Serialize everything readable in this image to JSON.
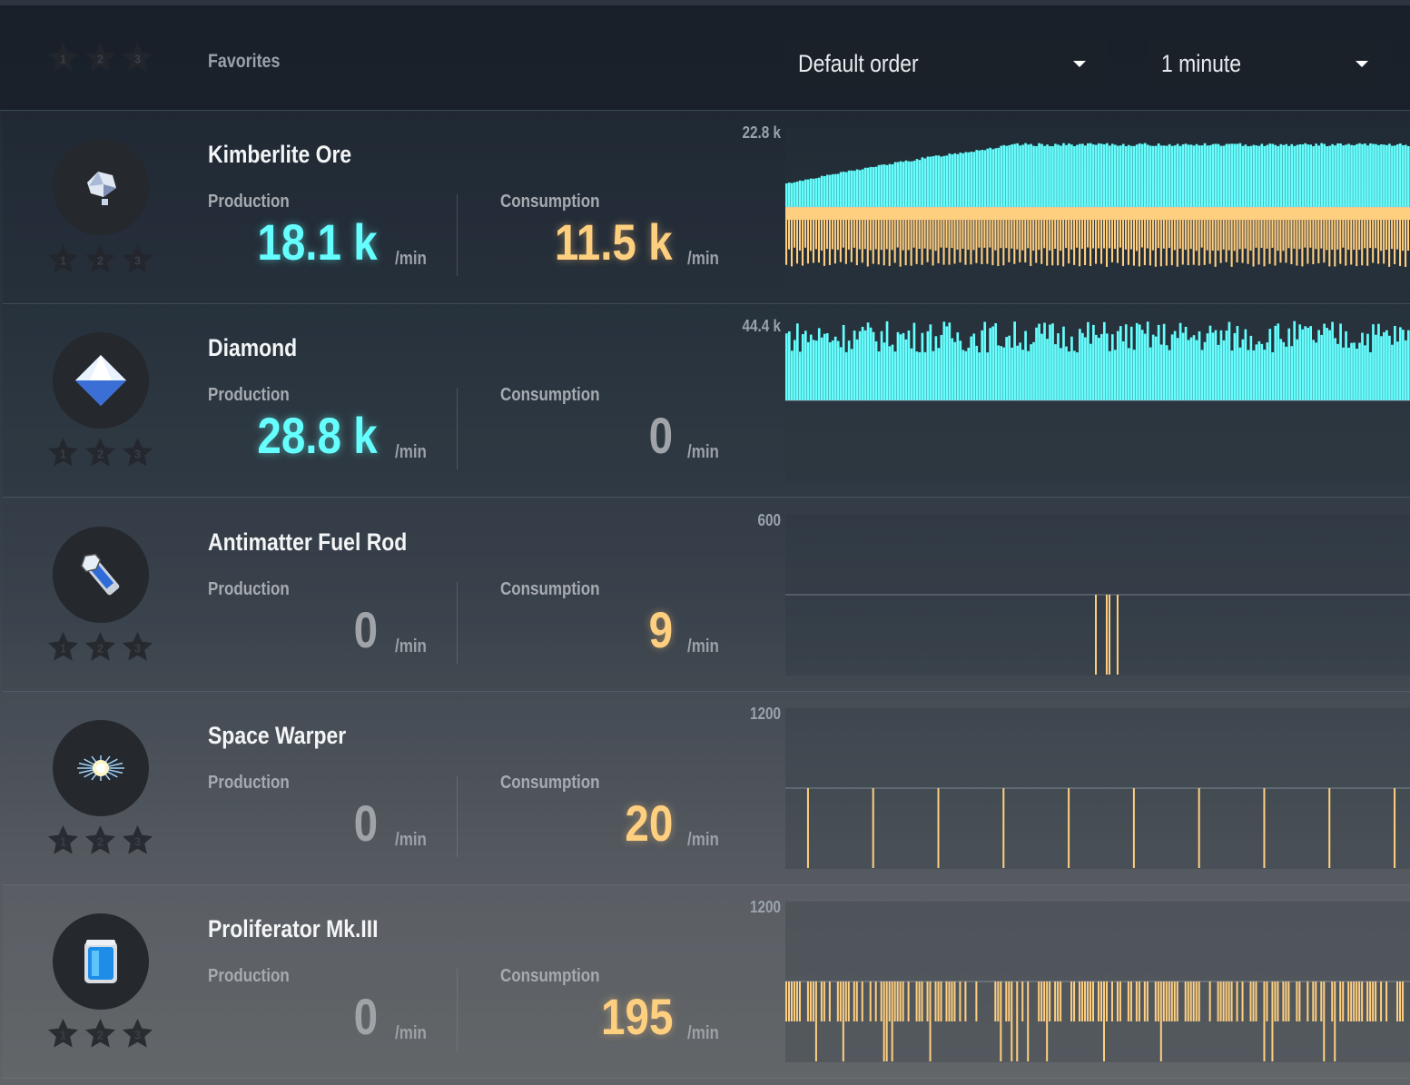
{
  "header": {
    "favorites_label": "Favorites",
    "sort_dropdown": "Default order",
    "time_dropdown": "1 minute",
    "star_labels": [
      "1",
      "2",
      "3"
    ]
  },
  "colors": {
    "production": "#66ffff",
    "consumption": "#ffcf80",
    "zero": "#a0a4a8"
  },
  "labels": {
    "production": "Production",
    "consumption": "Consumption",
    "unit": "/min"
  },
  "items": [
    {
      "name": "Kimberlite Ore",
      "icon": "kimberlite-ore-icon",
      "production": "18.1 k",
      "consumption": "11.5 k",
      "axis_max": "22.8 k",
      "prod_level": 0.79,
      "cons_level": 0.5
    },
    {
      "name": "Diamond",
      "icon": "diamond-icon",
      "production": "28.8 k",
      "consumption": "0",
      "axis_max": "44.4 k",
      "prod_level": 0.65,
      "cons_level": 0
    },
    {
      "name": "Antimatter Fuel Rod",
      "icon": "antimatter-fuel-rod-icon",
      "production": "0",
      "consumption": "9",
      "axis_max": "600",
      "prod_level": 0,
      "cons_level": 0.015
    },
    {
      "name": "Space Warper",
      "icon": "space-warper-icon",
      "production": "0",
      "consumption": "20",
      "axis_max": "1200",
      "prod_level": 0,
      "cons_level": 0.017
    },
    {
      "name": "Proliferator Mk.III",
      "icon": "proliferator-mk3-icon",
      "production": "0",
      "consumption": "195",
      "axis_max": "1200",
      "prod_level": 0,
      "cons_level": 0.16
    }
  ]
}
